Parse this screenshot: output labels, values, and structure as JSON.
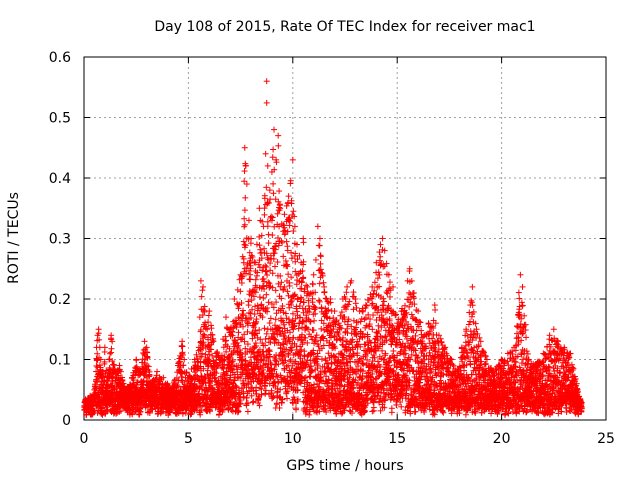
{
  "chart_data": {
    "type": "scatter",
    "title": "Day 108 of 2015, Rate Of TEC Index for receiver mac1",
    "xlabel": "GPS time / hours",
    "ylabel": "ROTI / TECUs",
    "xlim": [
      0,
      25
    ],
    "ylim": [
      0,
      0.6
    ],
    "xticks": [
      0,
      5,
      10,
      15,
      20,
      25
    ],
    "yticks": [
      0,
      0.1,
      0.2,
      0.3,
      0.4,
      0.5,
      0.6
    ],
    "x_tick_labels": [
      "0",
      "5",
      "10",
      "15",
      "20",
      "25"
    ],
    "y_tick_labels": [
      "0",
      "0.1",
      "0.2",
      "0.3",
      "0.4",
      "0.5",
      "0.6"
    ],
    "grid": true,
    "marker": "+",
    "marker_color": "#ff0000",
    "series": [
      {
        "values": [
          [
            0.05,
            0.03
          ],
          [
            0.1,
            0.02
          ],
          [
            0.2,
            0.03
          ],
          [
            0.3,
            0.04
          ],
          [
            0.4,
            0.03
          ],
          [
            0.5,
            0.05
          ],
          [
            0.6,
            0.12
          ],
          [
            0.65,
            0.14
          ],
          [
            0.7,
            0.15
          ],
          [
            0.8,
            0.1
          ],
          [
            0.9,
            0.08
          ],
          [
            1.0,
            0.12
          ],
          [
            1.1,
            0.07
          ],
          [
            1.2,
            0.1
          ],
          [
            1.3,
            0.14
          ],
          [
            1.35,
            0.13
          ],
          [
            1.5,
            0.08
          ],
          [
            1.7,
            0.09
          ],
          [
            1.9,
            0.06
          ],
          [
            2.0,
            0.05
          ],
          [
            2.3,
            0.07
          ],
          [
            2.5,
            0.1
          ],
          [
            2.7,
            0.08
          ],
          [
            2.9,
            0.13
          ],
          [
            3.0,
            0.12
          ],
          [
            3.2,
            0.06
          ],
          [
            3.5,
            0.08
          ],
          [
            3.8,
            0.07
          ],
          [
            4.0,
            0.06
          ],
          [
            4.2,
            0.05
          ],
          [
            4.5,
            0.09
          ],
          [
            4.7,
            0.13
          ],
          [
            4.8,
            0.1
          ],
          [
            5.0,
            0.07
          ],
          [
            5.3,
            0.1
          ],
          [
            5.5,
            0.12
          ],
          [
            5.6,
            0.23
          ],
          [
            5.7,
            0.22
          ],
          [
            5.9,
            0.15
          ],
          [
            6.0,
            0.18
          ],
          [
            6.2,
            0.13
          ],
          [
            6.5,
            0.1
          ],
          [
            6.8,
            0.17
          ],
          [
            7.0,
            0.15
          ],
          [
            7.2,
            0.2
          ],
          [
            7.5,
            0.24
          ],
          [
            7.6,
            0.27
          ],
          [
            7.7,
            0.45
          ],
          [
            7.75,
            0.42
          ],
          [
            7.8,
            0.39
          ],
          [
            7.9,
            0.33
          ],
          [
            8.0,
            0.3
          ],
          [
            8.2,
            0.26
          ],
          [
            8.4,
            0.35
          ],
          [
            8.6,
            0.32
          ],
          [
            8.7,
            0.44
          ],
          [
            8.75,
            0.56
          ],
          [
            8.8,
            0.42
          ],
          [
            8.9,
            0.38
          ],
          [
            9.0,
            0.41
          ],
          [
            9.1,
            0.48
          ],
          [
            9.2,
            0.43
          ],
          [
            9.3,
            0.47
          ],
          [
            9.4,
            0.35
          ],
          [
            9.6,
            0.34
          ],
          [
            9.8,
            0.37
          ],
          [
            10.0,
            0.43
          ],
          [
            10.1,
            0.32
          ],
          [
            10.2,
            0.29
          ],
          [
            10.4,
            0.26
          ],
          [
            10.5,
            0.3
          ],
          [
            10.7,
            0.22
          ],
          [
            11.0,
            0.24
          ],
          [
            11.2,
            0.32
          ],
          [
            11.3,
            0.3
          ],
          [
            11.5,
            0.22
          ],
          [
            11.8,
            0.2
          ],
          [
            12.0,
            0.18
          ],
          [
            12.2,
            0.16
          ],
          [
            12.4,
            0.2
          ],
          [
            12.6,
            0.22
          ],
          [
            12.8,
            0.23
          ],
          [
            13.0,
            0.2
          ],
          [
            13.2,
            0.18
          ],
          [
            13.5,
            0.19
          ],
          [
            13.8,
            0.22
          ],
          [
            14.0,
            0.26
          ],
          [
            14.2,
            0.29
          ],
          [
            14.3,
            0.3
          ],
          [
            14.4,
            0.28
          ],
          [
            14.6,
            0.24
          ],
          [
            14.8,
            0.22
          ],
          [
            15.0,
            0.16
          ],
          [
            15.2,
            0.18
          ],
          [
            15.5,
            0.23
          ],
          [
            15.6,
            0.25
          ],
          [
            15.8,
            0.21
          ],
          [
            16.0,
            0.18
          ],
          [
            16.3,
            0.14
          ],
          [
            16.5,
            0.16
          ],
          [
            16.8,
            0.19
          ],
          [
            17.0,
            0.14
          ],
          [
            17.3,
            0.12
          ],
          [
            17.6,
            0.1
          ],
          [
            17.9,
            0.08
          ],
          [
            18.1,
            0.12
          ],
          [
            18.3,
            0.15
          ],
          [
            18.5,
            0.19
          ],
          [
            18.6,
            0.22
          ],
          [
            18.8,
            0.15
          ],
          [
            19.0,
            0.13
          ],
          [
            19.3,
            0.1
          ],
          [
            19.6,
            0.08
          ],
          [
            20.0,
            0.1
          ],
          [
            20.3,
            0.11
          ],
          [
            20.6,
            0.12
          ],
          [
            20.9,
            0.24
          ],
          [
            21.0,
            0.22
          ],
          [
            21.3,
            0.1
          ],
          [
            21.6,
            0.09
          ],
          [
            22.0,
            0.11
          ],
          [
            22.3,
            0.14
          ],
          [
            22.5,
            0.15
          ],
          [
            22.7,
            0.13
          ],
          [
            23.0,
            0.12
          ],
          [
            23.3,
            0.11
          ],
          [
            23.6,
            0.06
          ],
          [
            23.8,
            0.03
          ]
        ]
      }
    ]
  }
}
